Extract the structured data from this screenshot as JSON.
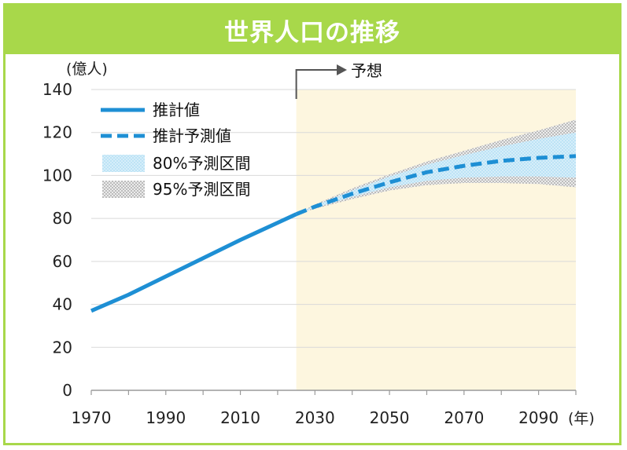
{
  "title": "世界人口の推移",
  "chart_data": {
    "type": "line",
    "title": "世界人口の推移",
    "ylabel": "(億人)",
    "xlabel": "(年)",
    "ylim": [
      0,
      140
    ],
    "xlim": [
      1970,
      2100
    ],
    "yticks": [
      0,
      20,
      40,
      60,
      80,
      100,
      120,
      140
    ],
    "xticks": [
      1970,
      1990,
      2010,
      2030,
      2050,
      2070,
      2090
    ],
    "grid": true,
    "forecast_label": "予想",
    "forecast_start": 2025,
    "legend": {
      "position": "top-left",
      "items": [
        "推計値",
        "推計予測値",
        "80%予測区間",
        "95%予測区間"
      ]
    },
    "series": [
      {
        "name": "推計値",
        "style": "solid",
        "color": "#1e8fd4",
        "x": [
          1970,
          1980,
          1990,
          2000,
          2010,
          2015,
          2020,
          2025
        ],
        "values": [
          37,
          44.5,
          53,
          61.5,
          70,
          74,
          78,
          82
        ]
      },
      {
        "name": "推計予測値",
        "style": "dashed",
        "color": "#1e8fd4",
        "x": [
          2025,
          2030,
          2040,
          2050,
          2060,
          2070,
          2080,
          2090,
          2100
        ],
        "values": [
          82,
          85.5,
          91.5,
          96.8,
          101.5,
          104.5,
          106.8,
          108.2,
          109
        ]
      }
    ],
    "bands": [
      {
        "name": "95%予測区間",
        "color": "#bdbdbd",
        "x": [
          2025,
          2030,
          2040,
          2050,
          2060,
          2070,
          2080,
          2090,
          2100
        ],
        "lower": [
          82,
          84.5,
          89,
          93,
          95.5,
          96.5,
          96.5,
          96,
          94.5
        ],
        "upper": [
          82,
          86.5,
          94,
          100.5,
          106.5,
          111.5,
          116.5,
          121,
          126
        ]
      },
      {
        "name": "80%予測区間",
        "color": "#cdeaf8",
        "x": [
          2025,
          2030,
          2040,
          2050,
          2060,
          2070,
          2080,
          2090,
          2100
        ],
        "lower": [
          82,
          85,
          90,
          94.5,
          97.5,
          99,
          99.5,
          99.5,
          99
        ],
        "upper": [
          82,
          86,
          93,
          99.5,
          105,
          109.5,
          113.5,
          117,
          120
        ]
      }
    ],
    "colors": {
      "frame": "#a8d84a",
      "forecast_bg": "#fdf6df",
      "line": "#1e8fd4",
      "grid": "#d9d9d9"
    }
  }
}
